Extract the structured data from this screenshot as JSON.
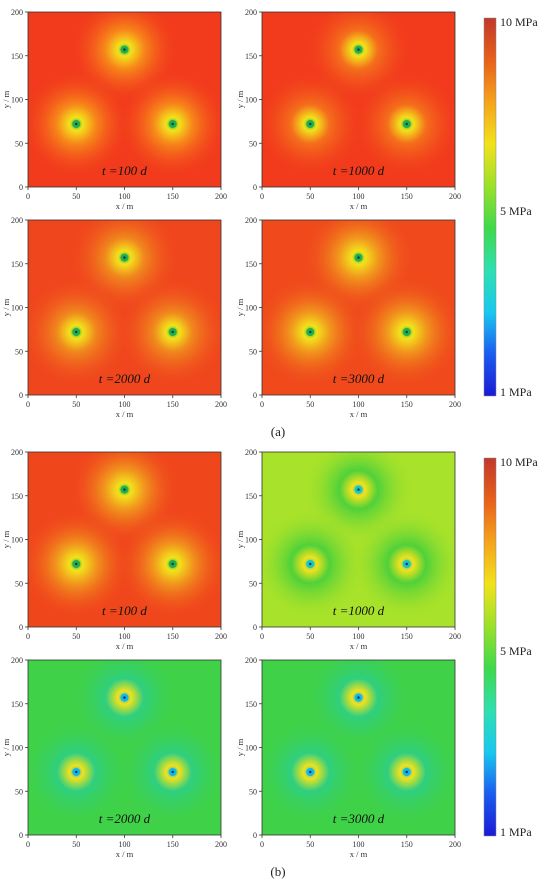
{
  "figure": {
    "groups": [
      {
        "caption": "(a)",
        "colorbar": {
          "max_label": "10 MPa",
          "mid_label": "5 MPa",
          "min_label": "1 MPa"
        },
        "panels": [
          {
            "time_label": "t =100 d",
            "bg": "#f23a1c",
            "halo": "#f78a1a",
            "well_center": "#1fb04a"
          },
          {
            "time_label": "t =1000 d",
            "bg": "#f23a1c",
            "halo": "#f4701b",
            "well_center": "#1fb04a"
          },
          {
            "time_label": "t =2000 d",
            "bg": "#f0461d",
            "halo": "#f08a1d",
            "well_center": "#1fb04a"
          },
          {
            "time_label": "t =3000 d",
            "bg": "#f04a1c",
            "halo": "#f19a1d",
            "well_center": "#1fb04a"
          }
        ]
      },
      {
        "caption": "(b)",
        "colorbar": {
          "max_label": "10 MPa",
          "mid_label": "5 MPa",
          "min_label": "1 MPa"
        },
        "panels": [
          {
            "time_label": "t =100 d",
            "bg": "#f0461c",
            "halo": "#f19a1d",
            "well_center": "#1fb04a"
          },
          {
            "time_label": "t =1000 d",
            "bg": "#a8e22a",
            "halo": "#4fd13a",
            "well_center": "#15c7c0"
          },
          {
            "time_label": "t =2000 d",
            "bg": "#3fd147",
            "halo": "#2fcf80",
            "well_center": "#10b8e8"
          },
          {
            "time_label": "t =3000 d",
            "bg": "#3fd147",
            "halo": "#2fcf80",
            "well_center": "#10b8e8"
          }
        ]
      }
    ],
    "axes": {
      "xlabel": "x / m",
      "ylabel": "y / m",
      "xticks": [
        "0",
        "50",
        "100",
        "150",
        "200"
      ],
      "yticks": [
        "0",
        "50",
        "100",
        "150",
        "200"
      ],
      "xlim": [
        0,
        200
      ],
      "ylim": [
        0,
        200
      ]
    },
    "wells": [
      {
        "x": 100,
        "y": 157
      },
      {
        "x": 50,
        "y": 72
      },
      {
        "x": 150,
        "y": 72
      }
    ],
    "colorbar_stops": [
      "#c0392b",
      "#e8601a",
      "#f5a31c",
      "#f2e21b",
      "#9be12a",
      "#3ed94a",
      "#2fe0b0",
      "#19c8f0",
      "#1a5cf0",
      "#1a1ad6"
    ]
  }
}
